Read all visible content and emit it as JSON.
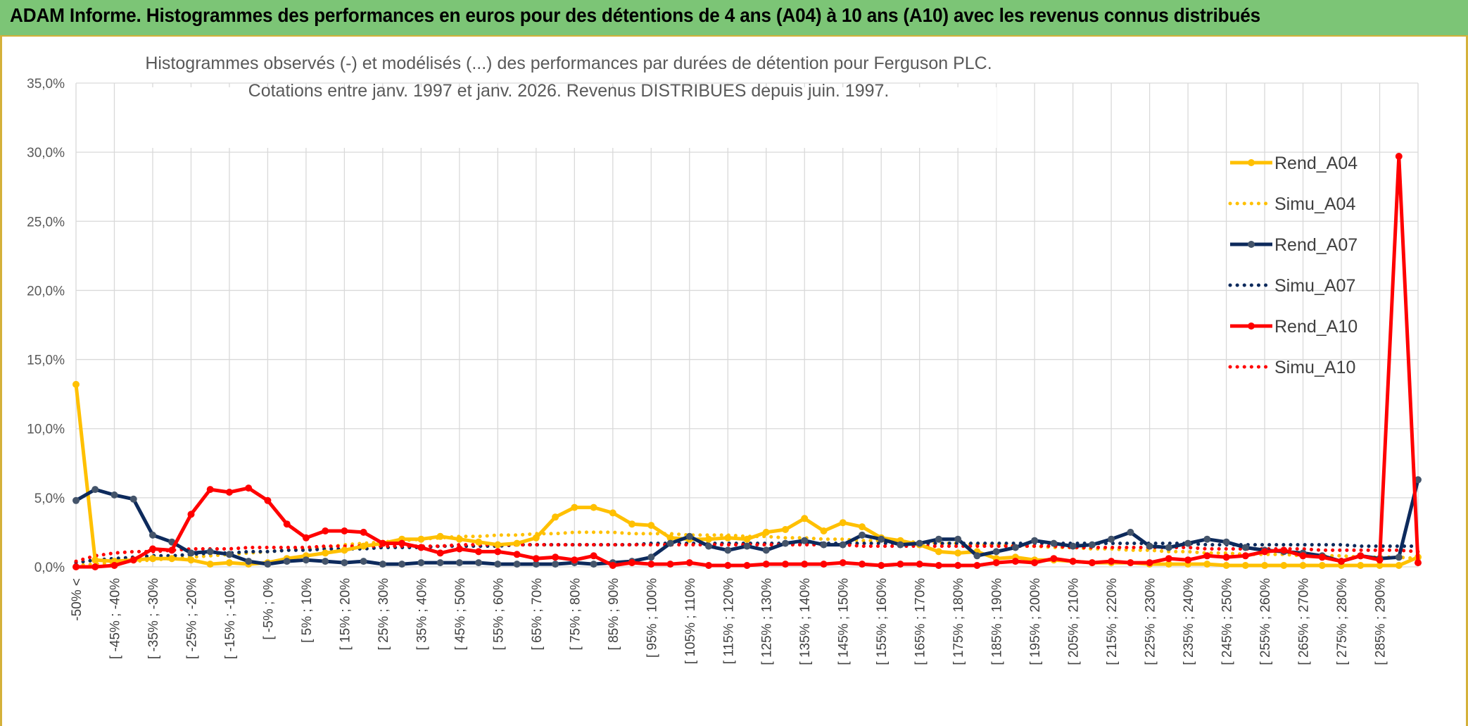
{
  "header": {
    "title": "ADAM Informe. Histogrammes des performances en euros pour des détentions de 4 ans (A04) à 10 ans (A10) avec les revenus connus distribués"
  },
  "chart_data": {
    "type": "line",
    "title_line1": "Histogrammes observés (-) et modélisés (...) des performances par durées de détention pour Ferguson PLC.",
    "title_line2": "Cotations entre janv. 1997 et janv. 2026. Revenus DISTRIBUES depuis juin. 1997.",
    "ylim": [
      0,
      35
    ],
    "ytick_labels": [
      "0,0%",
      "5,0%",
      "10,0%",
      "15,0%",
      "20,0%",
      "25,0%",
      "30,0%",
      "35,0%"
    ],
    "x_labels": [
      "-50% <",
      "[ -45% ; -40%",
      "[ -35% ; -30%",
      "[ -25% ; -20%",
      "[ -15% ; -10%",
      "[ -5% ; 0%",
      "[ 5% ; 10%",
      "[ 15% ; 20%",
      "[ 25% ; 30%",
      "[ 35% ; 40%",
      "[ 45% ; 50%",
      "[ 55% ; 60%",
      "[ 65% ; 70%",
      "[ 75% ; 80%",
      "[ 85% ; 90%",
      "[ 95% ; 100%",
      "[ 105% ; 110%",
      "[ 115% ; 120%",
      "[ 125% ; 130%",
      "[ 135% ; 140%",
      "[ 145% ; 150%",
      "[ 155% ; 160%",
      "[ 165% ; 170%",
      "[ 175% ; 180%",
      "[ 185% ; 190%",
      "[ 195% ; 200%",
      "[ 205% ; 210%",
      "[ 215% ; 220%",
      "[ 225% ; 230%",
      "[ 235% ; 240%",
      "[ 245% ; 250%",
      "[ 255% ; 260%",
      "[ 265% ; 270%",
      "[ 275% ; 280%",
      "[ 285% ; 290%"
    ],
    "n_points": 71,
    "grid": true,
    "legend_position": "right",
    "series": [
      {
        "name": "Rend_A04",
        "style": "solid-marker",
        "color": "#ffc000",
        "values": [
          13.2,
          0.5,
          0.4,
          0.5,
          0.6,
          0.6,
          0.5,
          0.2,
          0.3,
          0.2,
          0.3,
          0.6,
          0.8,
          1.0,
          1.2,
          1.5,
          1.7,
          2.0,
          2.0,
          2.2,
          2.0,
          1.8,
          1.6,
          1.7,
          2.1,
          3.6,
          4.3,
          4.3,
          3.9,
          3.1,
          3.0,
          2.1,
          2.0,
          2.0,
          2.1,
          2.0,
          2.5,
          2.7,
          3.5,
          2.6,
          3.2,
          2.9,
          2.1,
          1.9,
          1.6,
          1.1,
          1.0,
          1.1,
          0.6,
          0.7,
          0.5,
          0.5,
          0.4,
          0.3,
          0.3,
          0.3,
          0.2,
          0.2,
          0.2,
          0.2,
          0.1,
          0.1,
          0.1,
          0.1,
          0.1,
          0.1,
          0.1,
          0.1,
          0.1,
          0.1,
          0.7
        ]
      },
      {
        "name": "Simu_A04",
        "style": "dotted",
        "color": "#ffc000",
        "values": [
          0.1,
          0.2,
          0.3,
          0.4,
          0.5,
          0.6,
          0.7,
          0.8,
          0.9,
          1.0,
          1.1,
          1.2,
          1.3,
          1.4,
          1.6,
          1.7,
          1.8,
          1.9,
          2.0,
          2.1,
          2.2,
          2.2,
          2.3,
          2.3,
          2.4,
          2.4,
          2.5,
          2.5,
          2.5,
          2.4,
          2.4,
          2.4,
          2.3,
          2.3,
          2.3,
          2.2,
          2.2,
          2.1,
          2.1,
          2.0,
          2.0,
          1.9,
          1.9,
          1.8,
          1.8,
          1.7,
          1.7,
          1.6,
          1.6,
          1.5,
          1.5,
          1.4,
          1.4,
          1.3,
          1.3,
          1.2,
          1.2,
          1.1,
          1.1,
          1.0,
          1.0,
          0.9,
          0.9,
          0.9,
          0.8,
          0.8,
          0.8,
          0.7,
          0.7,
          0.7,
          0.6
        ]
      },
      {
        "name": "Rend_A07",
        "style": "solid-marker",
        "color": "#0d2a5c",
        "values": [
          4.8,
          5.6,
          5.2,
          4.9,
          2.3,
          1.8,
          1.0,
          1.1,
          0.9,
          0.4,
          0.2,
          0.4,
          0.5,
          0.4,
          0.3,
          0.4,
          0.2,
          0.2,
          0.3,
          0.3,
          0.3,
          0.3,
          0.2,
          0.2,
          0.2,
          0.2,
          0.3,
          0.2,
          0.3,
          0.4,
          0.7,
          1.7,
          2.2,
          1.5,
          1.2,
          1.5,
          1.2,
          1.7,
          1.9,
          1.6,
          1.6,
          2.3,
          2.0,
          1.6,
          1.7,
          2.0,
          2.0,
          0.8,
          1.1,
          1.4,
          1.9,
          1.7,
          1.5,
          1.6,
          2.0,
          2.5,
          1.5,
          1.4,
          1.7,
          2.0,
          1.8,
          1.4,
          1.2,
          1.1,
          1.0,
          0.8,
          0.4,
          0.8,
          0.6,
          0.7,
          6.3
        ]
      },
      {
        "name": "Simu_A07",
        "style": "dotted",
        "color": "#0d2a5c",
        "values": [
          0.3,
          0.5,
          0.6,
          0.7,
          0.8,
          0.8,
          0.9,
          1.0,
          1.0,
          1.1,
          1.1,
          1.2,
          1.2,
          1.3,
          1.3,
          1.3,
          1.4,
          1.4,
          1.4,
          1.5,
          1.5,
          1.5,
          1.5,
          1.6,
          1.6,
          1.6,
          1.6,
          1.6,
          1.6,
          1.6,
          1.7,
          1.7,
          1.7,
          1.7,
          1.7,
          1.7,
          1.7,
          1.7,
          1.7,
          1.7,
          1.7,
          1.7,
          1.7,
          1.7,
          1.7,
          1.7,
          1.7,
          1.7,
          1.7,
          1.7,
          1.7,
          1.7,
          1.7,
          1.7,
          1.7,
          1.7,
          1.7,
          1.7,
          1.7,
          1.6,
          1.6,
          1.6,
          1.6,
          1.6,
          1.6,
          1.6,
          1.6,
          1.5,
          1.5,
          1.5,
          1.5
        ]
      },
      {
        "name": "Rend_A10",
        "style": "solid-marker",
        "color": "#ff0000",
        "values": [
          0.0,
          0.0,
          0.1,
          0.5,
          1.3,
          1.2,
          3.8,
          5.6,
          5.4,
          5.7,
          4.8,
          3.1,
          2.1,
          2.6,
          2.6,
          2.5,
          1.7,
          1.7,
          1.4,
          1.0,
          1.3,
          1.1,
          1.1,
          0.9,
          0.6,
          0.7,
          0.5,
          0.8,
          0.1,
          0.3,
          0.2,
          0.2,
          0.3,
          0.1,
          0.1,
          0.1,
          0.2,
          0.2,
          0.2,
          0.2,
          0.3,
          0.2,
          0.1,
          0.2,
          0.2,
          0.1,
          0.1,
          0.1,
          0.3,
          0.4,
          0.3,
          0.6,
          0.4,
          0.3,
          0.4,
          0.3,
          0.3,
          0.6,
          0.5,
          0.8,
          0.7,
          0.8,
          1.1,
          1.2,
          0.8,
          0.7,
          0.4,
          0.8,
          0.5,
          29.7,
          0.3
        ]
      },
      {
        "name": "Simu_A10",
        "style": "dotted",
        "color": "#ff0000",
        "values": [
          0.4,
          0.8,
          1.0,
          1.1,
          1.1,
          1.2,
          1.3,
          1.3,
          1.3,
          1.4,
          1.4,
          1.4,
          1.4,
          1.5,
          1.5,
          1.5,
          1.5,
          1.5,
          1.5,
          1.5,
          1.6,
          1.6,
          1.6,
          1.6,
          1.6,
          1.6,
          1.6,
          1.6,
          1.6,
          1.6,
          1.6,
          1.6,
          1.6,
          1.6,
          1.6,
          1.6,
          1.6,
          1.6,
          1.6,
          1.6,
          1.6,
          1.5,
          1.5,
          1.5,
          1.5,
          1.5,
          1.5,
          1.5,
          1.5,
          1.5,
          1.5,
          1.5,
          1.4,
          1.4,
          1.4,
          1.4,
          1.4,
          1.4,
          1.4,
          1.3,
          1.3,
          1.3,
          1.3,
          1.3,
          1.3,
          1.2,
          1.2,
          1.2,
          1.2,
          1.2,
          1.1
        ]
      }
    ]
  }
}
